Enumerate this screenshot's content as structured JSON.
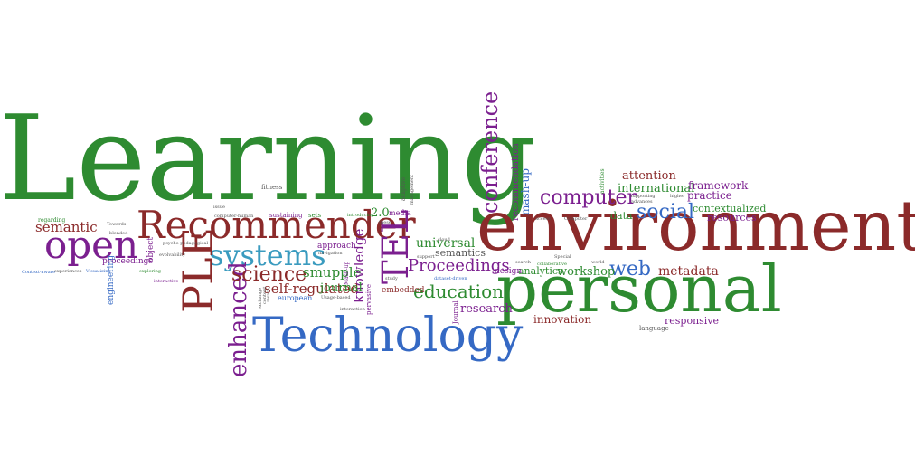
{
  "words": [
    {
      "id": "learning",
      "text": "Learning",
      "color": "#2e8b31"
    },
    {
      "id": "environments",
      "text": "environments",
      "color": "#8b2a2a"
    },
    {
      "id": "personal",
      "text": "personal",
      "color": "#2e8b31"
    },
    {
      "id": "technology",
      "text": "Technology",
      "color": "#3569c4"
    },
    {
      "id": "recommender",
      "text": "Recommender",
      "color": "#8b2a2a"
    },
    {
      "id": "open",
      "text": "open",
      "color": "#7b1f8f"
    },
    {
      "id": "systems",
      "text": "systems",
      "color": "#3a9bbf"
    },
    {
      "id": "ple",
      "text": "PLE",
      "color": "#8b2a2a"
    },
    {
      "id": "tel",
      "text": "TEL",
      "color": "#7b1f8f"
    },
    {
      "id": "enhanced",
      "text": "enhanced",
      "color": "#7b1f8f"
    },
    {
      "id": "science",
      "text": "science",
      "color": "#8b2a2a"
    },
    {
      "id": "social",
      "text": "social",
      "color": "#3569c4"
    },
    {
      "id": "conference",
      "text": "conference",
      "color": "#7b1f8f"
    },
    {
      "id": "computer",
      "text": "computer",
      "color": "#7b1f8f"
    },
    {
      "id": "web",
      "text": "web",
      "color": "#3569c4"
    },
    {
      "id": "education",
      "text": "education",
      "color": "#2e8b31"
    },
    {
      "id": "proceedings-big",
      "text": "Proceedings",
      "color": "#7b1f8f"
    },
    {
      "id": "semantic",
      "text": "semantic",
      "color": "#8b2a2a"
    },
    {
      "id": "self-regulated",
      "text": "self-regulated",
      "color": "#8b2a2a"
    },
    {
      "id": "smupple",
      "text": "smupple",
      "color": "#2e8b31"
    },
    {
      "id": "knowledge",
      "text": "knowledge",
      "color": "#7b1f8f"
    },
    {
      "id": "journal",
      "text": "journal",
      "color": "#2e8b31"
    },
    {
      "id": "universal",
      "text": "universal",
      "color": "#2e8b31"
    },
    {
      "id": "semantics",
      "text": "semantics",
      "color": "#555555"
    },
    {
      "id": "workshop",
      "text": "workshop",
      "color": "#2e8b31"
    },
    {
      "id": "metadata",
      "text": "metadata",
      "color": "#8b2a2a"
    },
    {
      "id": "research",
      "text": "research",
      "color": "#7b1f8f"
    },
    {
      "id": "innovation",
      "text": "innovation",
      "color": "#8b2a2a"
    },
    {
      "id": "responsive",
      "text": "responsive",
      "color": "#7b1f8f"
    },
    {
      "id": "international",
      "text": "international",
      "color": "#2e8b31"
    },
    {
      "id": "attention",
      "text": "attention",
      "color": "#8b2a2a"
    },
    {
      "id": "framework",
      "text": "framework",
      "color": "#7b1f8f"
    },
    {
      "id": "practice",
      "text": "practice",
      "color": "#7b1f8f"
    },
    {
      "id": "contextualized",
      "text": "contextualized",
      "color": "#2e8b31"
    },
    {
      "id": "resources",
      "text": "resources",
      "color": "#7b1f8f"
    },
    {
      "id": "data",
      "text": "data",
      "color": "#2e8b31"
    },
    {
      "id": "recommendation",
      "text": "recommendation",
      "color": "#7b1f8f"
    },
    {
      "id": "mash-up",
      "text": "mash-up",
      "color": "#3569c4"
    },
    {
      "id": "analytics",
      "text": "analytics",
      "color": "#2e8b31"
    },
    {
      "id": "design",
      "text": "design",
      "color": "#7b1f8f"
    },
    {
      "id": "embedded",
      "text": "embedded",
      "color": "#8b2a2a"
    },
    {
      "id": "approach",
      "text": "approach",
      "color": "#7b1f8f"
    },
    {
      "id": "two-point-oh",
      "text": "2.0",
      "color": "#2e8b31"
    },
    {
      "id": "media",
      "text": "media",
      "color": "#7b1f8f"
    },
    {
      "id": "proceedings-small",
      "text": "proceedings",
      "color": "#7b1f8f"
    },
    {
      "id": "object",
      "text": "object",
      "color": "#7b1f8f"
    },
    {
      "id": "engineering",
      "text": "engineering",
      "color": "#3569c4"
    },
    {
      "id": "european",
      "text": "european",
      "color": "#3569c4"
    },
    {
      "id": "regarding",
      "text": "regarding",
      "color": "#2e8b31"
    },
    {
      "id": "fitness",
      "text": "fitness",
      "color": "#555555"
    },
    {
      "id": "sustaining",
      "text": "sustaining",
      "color": "#7b1f8f"
    },
    {
      "id": "sets",
      "text": "sets",
      "color": "#2e8b31"
    },
    {
      "id": "language",
      "text": "language",
      "color": "#555555"
    },
    {
      "id": "context-aware",
      "text": "Context-aware",
      "color": "#3569c4"
    },
    {
      "id": "experiences",
      "text": "experiences",
      "color": "#555555"
    },
    {
      "id": "visualizing",
      "text": "Visualizing",
      "color": "#3569c4"
    },
    {
      "id": "exploring",
      "text": "exploring",
      "color": "#2e8b31"
    },
    {
      "id": "interactive",
      "text": "interactive",
      "color": "#7b1f8f"
    },
    {
      "id": "pervasive",
      "text": "pervasive",
      "color": "#7b1f8f"
    },
    {
      "id": "mash-up-small",
      "text": "Mash-up",
      "color": "#7b1f8f"
    },
    {
      "id": "usage-based",
      "text": "Usage-based",
      "color": "#555555"
    },
    {
      "id": "navigation",
      "text": "navigation",
      "color": "#555555"
    },
    {
      "id": "introducing",
      "text": "introducing",
      "color": "#2e8b31"
    },
    {
      "id": "computer-human",
      "text": "computer-human",
      "color": "#555555"
    },
    {
      "id": "psycho-pedagogical",
      "text": "psycho-pedagogical",
      "color": "#555555"
    },
    {
      "id": "search",
      "text": "search",
      "color": "#555555"
    },
    {
      "id": "collaborative",
      "text": "collaborative",
      "color": "#2e8b31"
    },
    {
      "id": "special",
      "text": "Special",
      "color": "#555555"
    },
    {
      "id": "supporting",
      "text": "supporting",
      "color": "#555555"
    },
    {
      "id": "activities",
      "text": "activities",
      "color": "#2e8b31"
    },
    {
      "id": "world",
      "text": "world",
      "color": "#555555"
    },
    {
      "id": "advances",
      "text": "advances",
      "color": "#555555"
    },
    {
      "id": "higher",
      "text": "higher",
      "color": "#555555"
    },
    {
      "id": "access",
      "text": "access",
      "color": "#555555"
    },
    {
      "id": "computer-small",
      "text": "Computer",
      "color": "#555555"
    },
    {
      "id": "study",
      "text": "study",
      "color": "#555555"
    },
    {
      "id": "interaction",
      "text": "interaction",
      "color": "#555555"
    },
    {
      "id": "journal-small",
      "text": "Journal",
      "color": "#7b1f8f"
    },
    {
      "id": "dataset-driven",
      "text": "dataset-driven",
      "color": "#3569c4"
    },
    {
      "id": "management",
      "text": "management",
      "color": "#555555"
    },
    {
      "id": "adaptive",
      "text": "adaptive",
      "color": "#555555"
    },
    {
      "id": "cloud",
      "text": "cloud",
      "color": "#555555"
    },
    {
      "id": "issue",
      "text": "issue",
      "color": "#555555"
    },
    {
      "id": "these",
      "text": "these",
      "color": "#555555"
    },
    {
      "id": "towards",
      "text": "Towards",
      "color": "#555555"
    },
    {
      "id": "blended",
      "text": "blended",
      "color": "#555555"
    },
    {
      "id": "evolvability",
      "text": "evolvability",
      "color": "#555555"
    },
    {
      "id": "support",
      "text": "support",
      "color": "#555555"
    },
    {
      "id": "exchange",
      "text": "exchange",
      "color": "#555555"
    },
    {
      "id": "content",
      "text": "content",
      "color": "#555555"
    },
    {
      "id": "aware",
      "text": "aware",
      "color": "#555555"
    }
  ]
}
